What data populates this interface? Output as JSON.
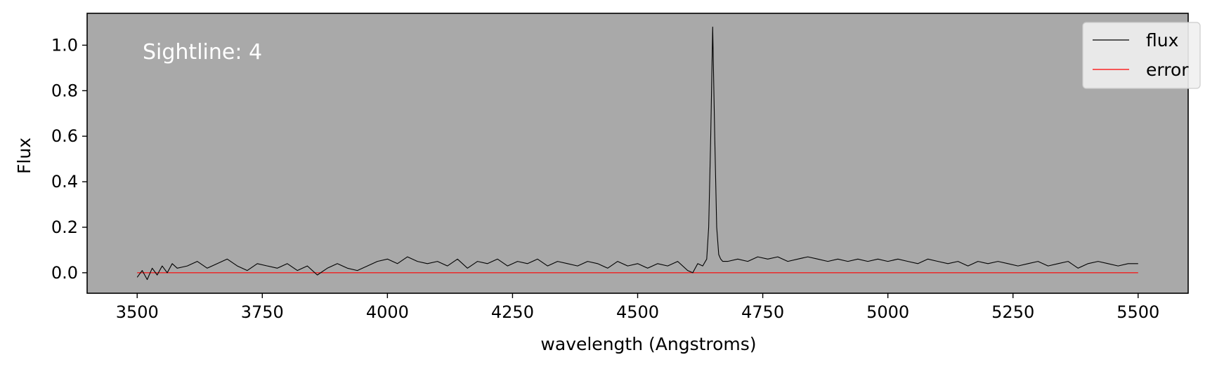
{
  "chart_data": {
    "type": "line",
    "title": "",
    "xlabel": "wavelength (Angstroms)",
    "ylabel": "Flux",
    "xlim": [
      3400,
      5600
    ],
    "ylim": [
      -0.09,
      1.14
    ],
    "x_ticks": [
      3500,
      3750,
      4000,
      4250,
      4500,
      4750,
      5000,
      5250,
      5500
    ],
    "x_tick_labels": [
      "3500",
      "3750",
      "4000",
      "4250",
      "4500",
      "4750",
      "5000",
      "5250",
      "5500"
    ],
    "y_ticks": [
      0.0,
      0.2,
      0.4,
      0.6,
      0.8,
      1.0
    ],
    "y_tick_labels": [
      "0.0",
      "0.2",
      "0.4",
      "0.6",
      "0.8",
      "1.0"
    ],
    "grid": false,
    "background_color": "#a9a9a9",
    "legend_position": "top-right",
    "annotation": "Sightline: 4",
    "series": [
      {
        "name": "flux",
        "color": "#000000",
        "x": [
          3500,
          3510,
          3520,
          3530,
          3540,
          3550,
          3560,
          3570,
          3580,
          3600,
          3620,
          3640,
          3660,
          3680,
          3700,
          3720,
          3740,
          3760,
          3780,
          3800,
          3820,
          3840,
          3860,
          3880,
          3900,
          3920,
          3940,
          3960,
          3980,
          4000,
          4020,
          4040,
          4060,
          4080,
          4100,
          4120,
          4140,
          4160,
          4180,
          4200,
          4220,
          4240,
          4260,
          4280,
          4300,
          4320,
          4340,
          4360,
          4380,
          4400,
          4420,
          4440,
          4460,
          4480,
          4500,
          4520,
          4540,
          4560,
          4580,
          4600,
          4610,
          4620,
          4630,
          4638,
          4642,
          4646,
          4650,
          4654,
          4658,
          4662,
          4666,
          4670,
          4680,
          4700,
          4720,
          4740,
          4760,
          4780,
          4800,
          4820,
          4840,
          4860,
          4880,
          4900,
          4920,
          4940,
          4960,
          4980,
          5000,
          5020,
          5040,
          5060,
          5080,
          5100,
          5120,
          5140,
          5160,
          5180,
          5200,
          5220,
          5240,
          5260,
          5280,
          5300,
          5320,
          5340,
          5360,
          5380,
          5400,
          5420,
          5440,
          5460,
          5480,
          5500
        ],
        "values": [
          -0.02,
          0.01,
          -0.03,
          0.02,
          -0.01,
          0.03,
          0.0,
          0.04,
          0.02,
          0.03,
          0.05,
          0.02,
          0.04,
          0.06,
          0.03,
          0.01,
          0.04,
          0.03,
          0.02,
          0.04,
          0.01,
          0.03,
          -0.01,
          0.02,
          0.04,
          0.02,
          0.01,
          0.03,
          0.05,
          0.06,
          0.04,
          0.07,
          0.05,
          0.04,
          0.05,
          0.03,
          0.06,
          0.02,
          0.05,
          0.04,
          0.06,
          0.03,
          0.05,
          0.04,
          0.06,
          0.03,
          0.05,
          0.04,
          0.03,
          0.05,
          0.04,
          0.02,
          0.05,
          0.03,
          0.04,
          0.02,
          0.04,
          0.03,
          0.05,
          0.01,
          0.0,
          0.04,
          0.03,
          0.06,
          0.2,
          0.6,
          1.08,
          0.6,
          0.2,
          0.08,
          0.06,
          0.05,
          0.05,
          0.06,
          0.05,
          0.07,
          0.06,
          0.07,
          0.05,
          0.06,
          0.07,
          0.06,
          0.05,
          0.06,
          0.05,
          0.06,
          0.05,
          0.06,
          0.05,
          0.06,
          0.05,
          0.04,
          0.06,
          0.05,
          0.04,
          0.05,
          0.03,
          0.05,
          0.04,
          0.05,
          0.04,
          0.03,
          0.04,
          0.05,
          0.03,
          0.04,
          0.05,
          0.02,
          0.04,
          0.05,
          0.04,
          0.03,
          0.04,
          0.04
        ]
      },
      {
        "name": "error",
        "color": "#ff0000",
        "x": [
          3500,
          5500
        ],
        "values": [
          0.0,
          0.0
        ]
      }
    ]
  }
}
